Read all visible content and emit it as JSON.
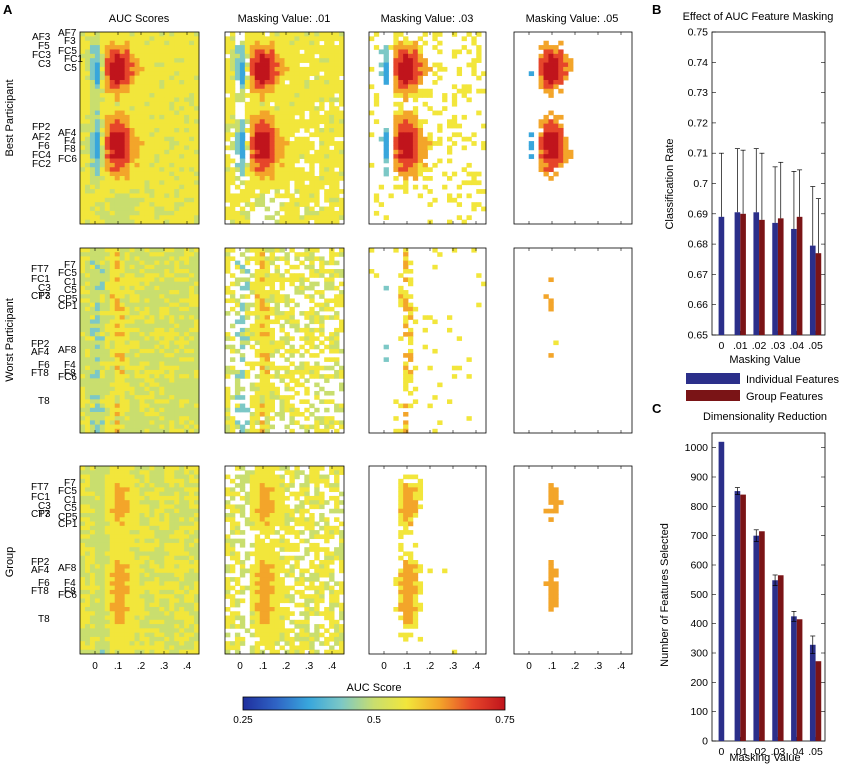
{
  "panel_labels": [
    "A",
    "B",
    "C"
  ],
  "colors": {
    "individual": "#2b2f8a",
    "group": "#7a1416",
    "colormap": [
      "#1f2f9e",
      "#2f63c4",
      "#38a6dc",
      "#7cc8c6",
      "#c9de6e",
      "#f2e63b",
      "#f3a52a",
      "#e6452a",
      "#c0141c"
    ]
  },
  "heatmaps": {
    "col_titles": [
      "AUC Scores",
      "Masking Value: .01",
      "Masking Value: .03",
      "Masking Value: .05"
    ],
    "row_titles": [
      "Best Participant",
      "Worst Participant",
      "Group"
    ],
    "x_ticks": [
      "0",
      ".1",
      ".2",
      ".3",
      ".4"
    ],
    "thresholds": [
      0,
      0.01,
      0.03,
      0.05
    ],
    "channel_labels": [
      [
        "AF3",
        "F5",
        "FC3",
        "C3",
        "AF7",
        "F3",
        "FC5",
        "FC1",
        "C5",
        "FP2",
        "AF2",
        "F6",
        "FC4",
        "FC2",
        "AF4",
        "F4",
        "F8",
        "FC6"
      ],
      [
        "FT7",
        "FC1",
        "C3",
        "T7",
        "CP3",
        "F7",
        "FC5",
        "C1",
        "C5",
        "CP5",
        "CP1",
        "FP2",
        "AF4",
        "F6",
        "FT8",
        "T8",
        "AF8",
        "F4",
        "F8",
        "FC6"
      ],
      [
        "FT7",
        "FC1",
        "C3",
        "T7",
        "CP3",
        "F7",
        "FC5",
        "C1",
        "C5",
        "CP5",
        "CP1",
        "FP2",
        "AF4",
        "F6",
        "FT8",
        "T8",
        "AF8",
        "F4",
        "F8",
        "FC6"
      ]
    ],
    "colorbar": {
      "label": "AUC Score",
      "min": 0.25,
      "max": 0.75,
      "ticks": [
        "0.25",
        "0.5",
        "0.75"
      ]
    }
  },
  "chart_data": [
    {
      "type": "bar",
      "panel": "B",
      "title": "Effect of AUC Feature Masking",
      "xlabel": "Masking Value",
      "ylabel": "Classification Rate",
      "categories": [
        "0",
        ".01",
        ".02",
        ".03",
        ".04",
        ".05"
      ],
      "ylim": [
        0.65,
        0.75
      ],
      "y_ticks": [
        "0.65",
        "0.66",
        "0.67",
        "0.68",
        "0.69",
        "0.7",
        "0.71",
        "0.72",
        "0.73",
        "0.74",
        "0.75"
      ],
      "series": [
        {
          "name": "Individual Features",
          "values": [
            0.689,
            0.6905,
            0.6905,
            0.687,
            0.685,
            0.6795
          ],
          "errors": [
            0.021,
            0.021,
            0.021,
            0.0185,
            0.019,
            0.0195
          ]
        },
        {
          "name": "Group Features",
          "values": [
            null,
            0.69,
            0.688,
            0.6885,
            0.689,
            0.677
          ],
          "errors": [
            null,
            0.021,
            0.022,
            0.0185,
            0.0155,
            0.018
          ]
        }
      ],
      "legend": [
        "Individual Features",
        "Group Features"
      ]
    },
    {
      "type": "bar",
      "panel": "C",
      "title": "Dimensionality Reduction",
      "xlabel": "Masking Value",
      "ylabel": "Number of Features Selected",
      "categories": [
        "0",
        ".01",
        ".02",
        ".03",
        ".04",
        ".05"
      ],
      "ylim": [
        0,
        1050
      ],
      "y_ticks": [
        "0",
        "100",
        "200",
        "300",
        "400",
        "500",
        "600",
        "700",
        "800",
        "900",
        "1000"
      ],
      "series": [
        {
          "name": "Individual Features",
          "values": [
            1020,
            852,
            700,
            548,
            425,
            328
          ],
          "errors": [
            0,
            12,
            20,
            18,
            17,
            30
          ]
        },
        {
          "name": "Group Features",
          "values": [
            null,
            840,
            715,
            565,
            415,
            272
          ],
          "errors": [
            null,
            0,
            0,
            0,
            0,
            0
          ]
        }
      ]
    }
  ]
}
